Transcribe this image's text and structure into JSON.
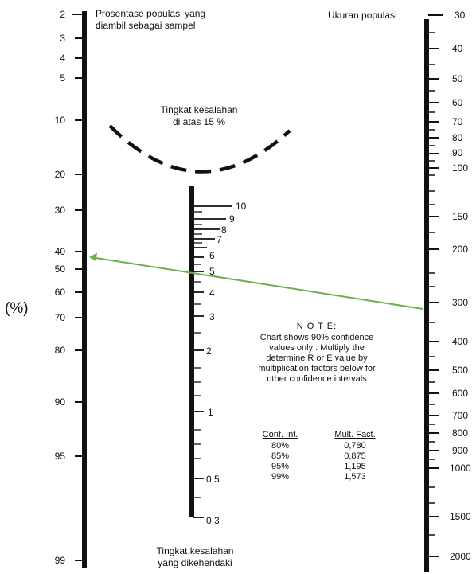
{
  "left_scale": {
    "title_line1": "Prosentase populasi yang",
    "title_line2": "diambil sebagai sampel",
    "unit": "(%)",
    "ticks": [
      {
        "label": "2",
        "value": 2
      },
      {
        "label": "3",
        "value": 3
      },
      {
        "label": "4",
        "value": 4
      },
      {
        "label": "5",
        "value": 5
      },
      {
        "label": "10",
        "value": 10
      },
      {
        "label": "20",
        "value": 20
      },
      {
        "label": "30",
        "value": 30
      },
      {
        "label": "40",
        "value": 40
      },
      {
        "label": "50",
        "value": 50
      },
      {
        "label": "60",
        "value": 60
      },
      {
        "label": "70",
        "value": 70
      },
      {
        "label": "80",
        "value": 80
      },
      {
        "label": "90",
        "value": 90
      },
      {
        "label": "95",
        "value": 95
      },
      {
        "label": "99",
        "value": 99
      }
    ]
  },
  "right_scale": {
    "title": "Ukuran populasi",
    "labels": [
      "30",
      "40",
      "50",
      "60",
      "70",
      "80",
      "90",
      "100",
      "150",
      "200",
      "300",
      "400",
      "500",
      "600",
      "700",
      "800",
      "900",
      "1000",
      "1500",
      "2000"
    ]
  },
  "middle_scale": {
    "title_line1": "Tingkat kesalahan",
    "title_line2": "yang dikehendaki",
    "labels": [
      "10",
      "9",
      "8",
      "7",
      "6",
      "5",
      "4",
      "3",
      "2",
      "1",
      "0,5",
      "0,3"
    ]
  },
  "error_arc": {
    "label_line1": "Tingkat kesalahan",
    "label_line2": "di atas 15 %"
  },
  "note": {
    "heading": "N O T E:",
    "lines": [
      "Chart shows 90% confidence",
      "values only : Multiply the",
      "determine R or E value by",
      "multiplication factors below for",
      "other confidence intervals"
    ],
    "table": {
      "headers": [
        "Conf. Int.",
        "Mult. Fact."
      ],
      "rows": [
        [
          "80%",
          "0,780"
        ],
        [
          "85%",
          "0,875"
        ],
        [
          "95%",
          "1,195"
        ],
        [
          "99%",
          "1,573"
        ]
      ]
    }
  },
  "reading_line": {
    "color": "#6ab04c"
  }
}
